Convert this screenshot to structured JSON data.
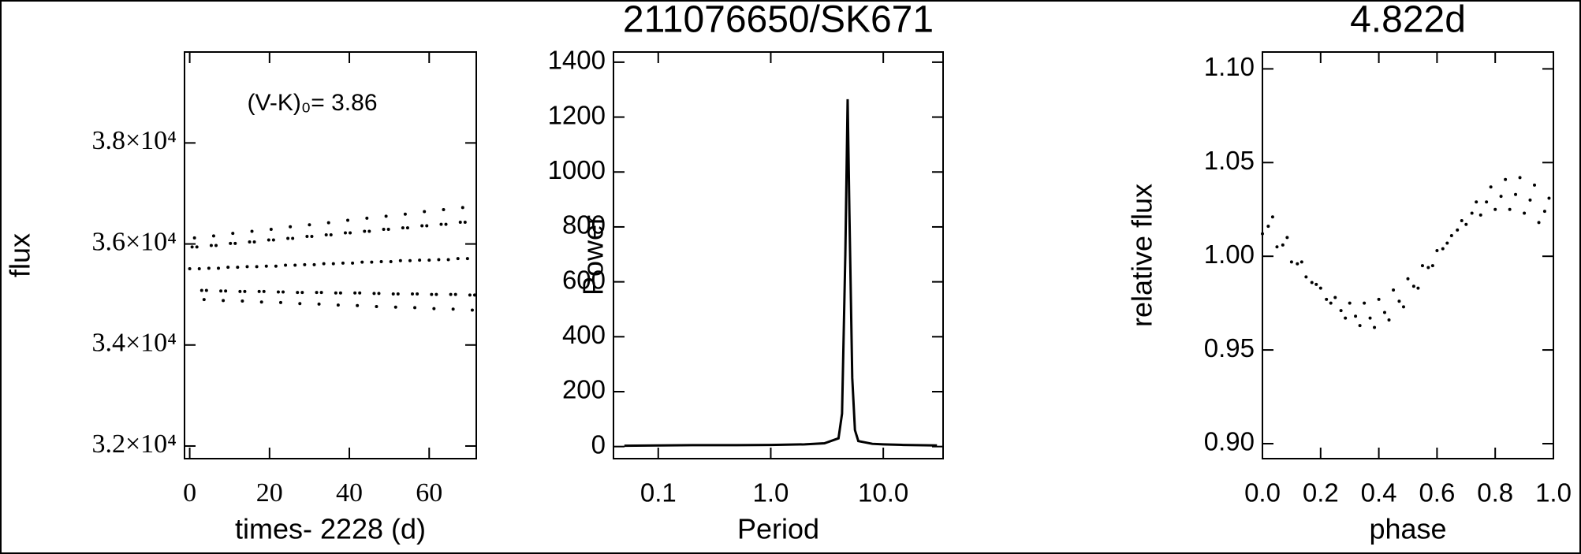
{
  "chart_data": [
    {
      "type": "scatter",
      "xlabel": "times- 2228 (d)",
      "ylabel": "flux",
      "annotation": "(V-K)₀= 3.86",
      "color": "#000000",
      "xlim": [
        -1.3,
        71.8
      ],
      "xticks": [
        0,
        20,
        40,
        60
      ],
      "ylim": [
        31750,
        39800
      ],
      "yticks": [
        {
          "value": 32000,
          "label": "3.2×10⁴"
        },
        {
          "value": 34000,
          "label": "3.4×10⁴"
        },
        {
          "value": 36000,
          "label": "3.6×10⁴"
        },
        {
          "value": 38000,
          "label": "3.8×10⁴"
        }
      ],
      "x": [
        0,
        0.6,
        1.2,
        1.8,
        2.4,
        3,
        3.6,
        4.2,
        4.8,
        5.4,
        6,
        6.6,
        7.2,
        7.8,
        8.4,
        9,
        9.6,
        10.2,
        10.8,
        11.4,
        12,
        12.6,
        13.2,
        13.8,
        14.4,
        15,
        15.6,
        16.2,
        16.8,
        17.4,
        18,
        18.6,
        19.2,
        19.8,
        20.4,
        21,
        21.6,
        22.2,
        22.8,
        23.4,
        24,
        24.6,
        25.2,
        25.8,
        26.4,
        27,
        27.6,
        28.2,
        28.8,
        29.4,
        30,
        30.6,
        31.2,
        31.8,
        32.4,
        33,
        33.6,
        34.2,
        34.8,
        35.4,
        36,
        36.6,
        37.2,
        37.8,
        38.4,
        39,
        39.6,
        40.2,
        40.8,
        41.4,
        42,
        42.6,
        43.2,
        43.8,
        44.4,
        45,
        45.6,
        46.2,
        46.8,
        47.4,
        48,
        48.6,
        49.2,
        49.8,
        50.4,
        51,
        51.6,
        52.2,
        52.8,
        53.4,
        54,
        54.6,
        55.2,
        55.8,
        56.4,
        57,
        57.6,
        58.2,
        58.8,
        59.4,
        60,
        60.6,
        61.2,
        61.8,
        62.4,
        63,
        63.6,
        64.2,
        64.8,
        65.4,
        66,
        66.6,
        67.2,
        67.8,
        68.4,
        69,
        69.6,
        70.2,
        70.8,
        71.4
      ],
      "values": [
        35510,
        35940,
        36120,
        35940,
        35510,
        35080,
        34900,
        35080,
        35520,
        35970,
        36160,
        35970,
        35520,
        35070,
        34880,
        35070,
        35540,
        36010,
        36210,
        36010,
        35540,
        35060,
        34870,
        35060,
        35550,
        36040,
        36250,
        36040,
        35550,
        35060,
        34850,
        35060,
        35560,
        36080,
        36290,
        36080,
        35560,
        35050,
        34840,
        35050,
        35580,
        36110,
        36340,
        36110,
        35580,
        35040,
        34820,
        35040,
        35590,
        36150,
        36380,
        36150,
        35590,
        35040,
        34810,
        35040,
        35610,
        36180,
        36420,
        36180,
        35610,
        35030,
        34790,
        35030,
        35620,
        36220,
        36470,
        36220,
        35620,
        35030,
        34780,
        35030,
        35640,
        36250,
        36510,
        36250,
        35640,
        35020,
        34760,
        35020,
        35650,
        36290,
        36550,
        36290,
        35650,
        35010,
        34750,
        35010,
        35670,
        36320,
        36590,
        36320,
        35670,
        35010,
        34740,
        35010,
        35680,
        36360,
        36640,
        36360,
        35680,
        35000,
        34720,
        35000,
        35690,
        36390,
        36680,
        36390,
        35690,
        35000,
        34710,
        35000,
        35710,
        36430,
        36720,
        36430,
        35710,
        34990,
        34690,
        34990
      ]
    },
    {
      "type": "line",
      "title": "211076650/SK671",
      "xlabel": "Period",
      "ylabel": "Power",
      "color": "#000000",
      "xscale": "log",
      "xlim": [
        0.04,
        34
      ],
      "xticks": [
        0.1,
        {
          "value": 1,
          "label": "1.0"
        },
        {
          "value": 10,
          "label": "10.0"
        }
      ],
      "ylim": [
        -44,
        1437
      ],
      "yticks": [
        0,
        200,
        400,
        600,
        800,
        1000,
        1200,
        1400
      ],
      "x": [
        0.05,
        0.1,
        0.2,
        0.5,
        1,
        2,
        3,
        4,
        4.3,
        4.6,
        4.822,
        5.0,
        5.3,
        5.6,
        6,
        8,
        10,
        15,
        20,
        30
      ],
      "values": [
        3,
        4,
        5,
        5,
        6,
        8,
        12,
        30,
        120,
        700,
        1265,
        850,
        250,
        60,
        20,
        10,
        8,
        6,
        5,
        4
      ]
    },
    {
      "type": "scatter",
      "title": "4.822d",
      "xlabel": "phase",
      "ylabel": "relative flux",
      "color": "#000000",
      "xlim": [
        0,
        1
      ],
      "xticks": [
        {
          "value": 0,
          "label": "0.0"
        },
        0.2,
        0.4,
        0.6,
        0.8,
        {
          "value": 1,
          "label": "1.0"
        }
      ],
      "ylim": [
        0.892,
        1.109
      ],
      "yticks": [
        {
          "value": 0.9,
          "label": "0.90"
        },
        0.95,
        {
          "value": 1,
          "label": "1.00"
        },
        1.05,
        {
          "value": 1.1,
          "label": "1.10"
        }
      ],
      "x": [
        0,
        0.05,
        0.1,
        0.15,
        0.2,
        0.25,
        0.3,
        0.35,
        0.4,
        0.45,
        0.5,
        0.55,
        0.6,
        0.65,
        0.7,
        0.75,
        0.8,
        0.85,
        0.9,
        0.95,
        0.02,
        0.07,
        0.12,
        0.17,
        0.22,
        0.27,
        0.32,
        0.37,
        0.42,
        0.47,
        0.52,
        0.57,
        0.62,
        0.67,
        0.72,
        0.77,
        0.82,
        0.87,
        0.92,
        0.97,
        0.035,
        0.085,
        0.135,
        0.185,
        0.235,
        0.285,
        0.335,
        0.385,
        0.435,
        0.485,
        0.535,
        0.585,
        0.635,
        0.685,
        0.735,
        0.785,
        0.835,
        0.885,
        0.935,
        0.985
      ],
      "values": [
        1.012,
        1.005,
        0.997,
        0.989,
        0.983,
        0.978,
        0.975,
        0.975,
        0.977,
        0.982,
        0.988,
        0.995,
        1.003,
        1.011,
        1.017,
        1.022,
        1.025,
        1.025,
        1.023,
        1.018,
        1.016,
        1.006,
        0.996,
        0.986,
        0.977,
        0.971,
        0.968,
        0.967,
        0.97,
        0.976,
        0.984,
        0.994,
        1.004,
        1.014,
        1.023,
        1.029,
        1.032,
        1.033,
        1.03,
        1.024,
        1.021,
        1.01,
        0.997,
        0.985,
        0.975,
        0.967,
        0.963,
        0.962,
        0.966,
        0.973,
        0.983,
        0.995,
        1.007,
        1.019,
        1.029,
        1.037,
        1.041,
        1.042,
        1.038,
        1.031
      ]
    }
  ]
}
